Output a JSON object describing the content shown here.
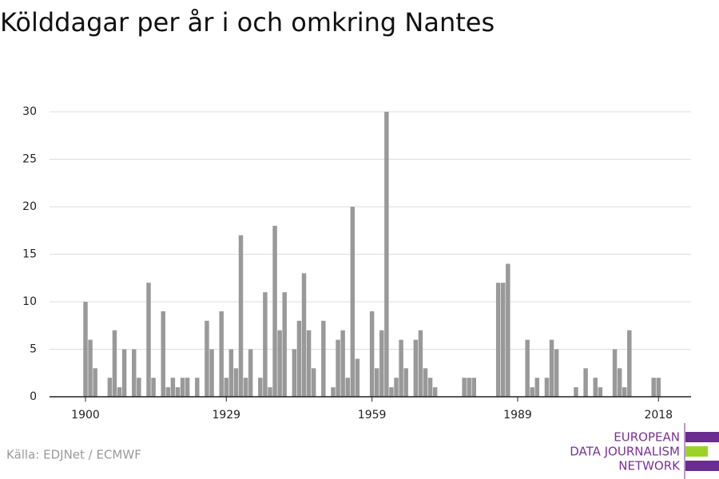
{
  "chart_data": {
    "type": "bar",
    "title": "Kölddagar per år i och omkring Nantes",
    "source": "Källa: EDJNet / ECMWF",
    "logo": [
      "EUROPEAN",
      "DATA JOURNALISM",
      "NETWORK"
    ],
    "color": "#999999",
    "x": [
      1900,
      1901,
      1902,
      1903,
      1904,
      1905,
      1906,
      1907,
      1908,
      1909,
      1910,
      1911,
      1912,
      1913,
      1914,
      1915,
      1916,
      1917,
      1918,
      1919,
      1920,
      1921,
      1922,
      1923,
      1924,
      1925,
      1926,
      1927,
      1928,
      1929,
      1930,
      1931,
      1932,
      1933,
      1934,
      1935,
      1936,
      1937,
      1938,
      1939,
      1940,
      1941,
      1942,
      1943,
      1944,
      1945,
      1946,
      1947,
      1948,
      1949,
      1950,
      1951,
      1952,
      1953,
      1954,
      1955,
      1956,
      1957,
      1958,
      1959,
      1960,
      1961,
      1962,
      1963,
      1964,
      1965,
      1966,
      1967,
      1968,
      1969,
      1970,
      1971,
      1972,
      1973,
      1974,
      1975,
      1976,
      1977,
      1978,
      1979,
      1980,
      1981,
      1982,
      1983,
      1984,
      1985,
      1986,
      1987,
      1988,
      1989,
      1990,
      1991,
      1992,
      1993,
      1994,
      1995,
      1996,
      1997,
      1998,
      1999,
      2000,
      2001,
      2002,
      2003,
      2004,
      2005,
      2006,
      2007,
      2008,
      2009,
      2010,
      2011,
      2012,
      2013,
      2014,
      2015,
      2016,
      2017,
      2018
    ],
    "values": [
      10,
      6,
      3,
      0,
      0,
      2,
      7,
      1,
      5,
      0,
      5,
      2,
      0,
      12,
      2,
      0,
      9,
      1,
      2,
      1,
      2,
      2,
      0,
      2,
      0,
      8,
      5,
      0,
      9,
      2,
      5,
      3,
      17,
      2,
      5,
      0,
      2,
      11,
      1,
      18,
      7,
      11,
      0,
      5,
      8,
      13,
      7,
      3,
      0,
      8,
      0,
      1,
      6,
      7,
      2,
      20,
      4,
      0,
      0,
      9,
      3,
      7,
      30,
      1,
      2,
      6,
      3,
      0,
      6,
      7,
      3,
      2,
      1,
      0,
      0,
      0,
      0,
      0,
      2,
      2,
      2,
      0,
      0,
      0,
      0,
      12,
      12,
      14,
      0,
      0,
      0,
      6,
      1,
      2,
      0,
      2,
      6,
      5,
      0,
      0,
      0,
      1,
      0,
      3,
      0,
      2,
      1,
      0,
      0,
      5,
      3,
      1,
      7,
      0,
      0,
      0,
      0,
      2,
      2
    ],
    "xlim": [
      1892.6,
      2024.7
    ],
    "xticks": [
      1900,
      1929,
      1959,
      1989,
      2018
    ],
    "ylim": [
      0,
      30
    ],
    "yticks": [
      0,
      5,
      10,
      15,
      20,
      25,
      30
    ],
    "grid": true
  }
}
